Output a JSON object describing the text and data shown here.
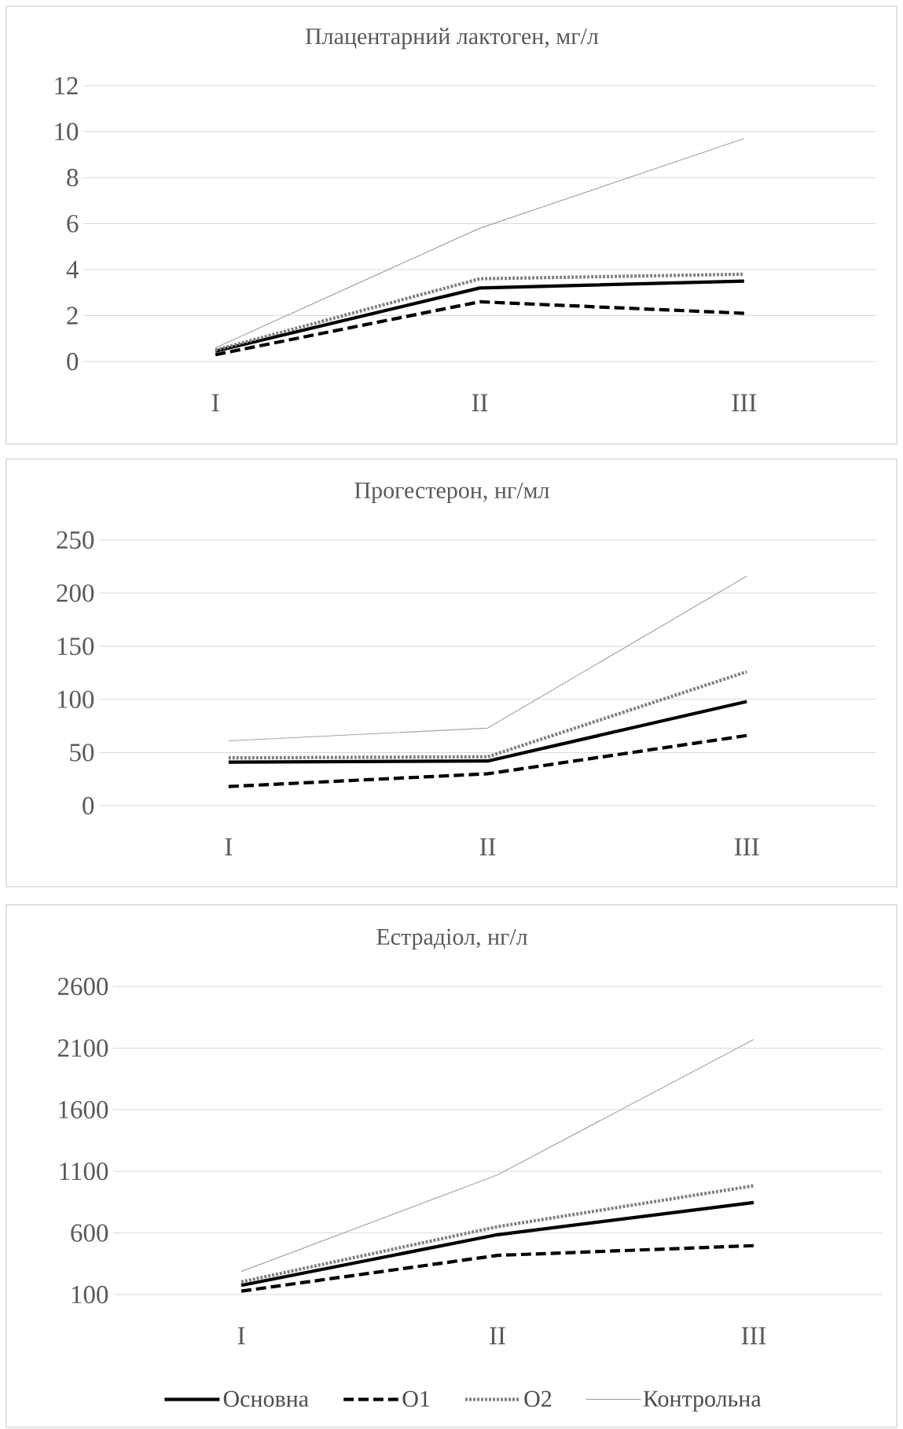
{
  "chart_data": [
    {
      "type": "line",
      "title": "Плацентарний лактоген, мг/л",
      "categories": [
        "I",
        "II",
        "III"
      ],
      "ylim": [
        0,
        12
      ],
      "yticks": [
        0,
        2,
        4,
        6,
        8,
        10,
        12
      ],
      "grid": "y",
      "series": [
        {
          "color": "#000000",
          "line_style": "solid",
          "values": [
            0.45,
            3.2,
            3.5
          ]
        },
        {
          "color": "#000000",
          "line_style": "dashed",
          "values": [
            0.3,
            2.6,
            2.1
          ]
        },
        {
          "color": "#808080",
          "line_style": "dotted",
          "values": [
            0.5,
            3.6,
            3.8
          ]
        },
        {
          "color": "#a6a6a6",
          "line_style": "solid",
          "values": [
            0.6,
            5.8,
            9.7
          ]
        }
      ]
    },
    {
      "type": "line",
      "title": "Прогестерон, нг/мл",
      "categories": [
        "I",
        "II",
        "III"
      ],
      "ylim": [
        0,
        250
      ],
      "yticks": [
        0,
        50,
        100,
        150,
        200,
        250
      ],
      "grid": "y",
      "series": [
        {
          "color": "#000000",
          "line_style": "solid",
          "values": [
            41,
            42,
            98
          ]
        },
        {
          "color": "#000000",
          "line_style": "dashed",
          "values": [
            18,
            30,
            66
          ]
        },
        {
          "color": "#808080",
          "line_style": "dotted",
          "values": [
            45,
            46,
            126
          ]
        },
        {
          "color": "#a6a6a6",
          "line_style": "solid",
          "values": [
            61,
            73,
            216
          ]
        }
      ]
    },
    {
      "type": "line",
      "title": "Естрадіол, нг/л",
      "categories": [
        "I",
        "II",
        "III"
      ],
      "ylim": [
        100,
        2600
      ],
      "yticks": [
        100,
        600,
        1100,
        1600,
        2100,
        2600
      ],
      "grid": "y",
      "legend": "bottom",
      "series": [
        {
          "name": "Основна",
          "color": "#000000",
          "line_style": "solid",
          "values": [
            175,
            586,
            847
          ]
        },
        {
          "name": "О1",
          "color": "#000000",
          "line_style": "dashed",
          "values": [
            128,
            418,
            497
          ]
        },
        {
          "name": "О2",
          "color": "#808080",
          "line_style": "dotted",
          "values": [
            203,
            651,
            983
          ]
        },
        {
          "name": "Контрольна",
          "color": "#a6a6a6",
          "line_style": "solid",
          "values": [
            287,
            1071,
            2170
          ]
        }
      ]
    }
  ]
}
